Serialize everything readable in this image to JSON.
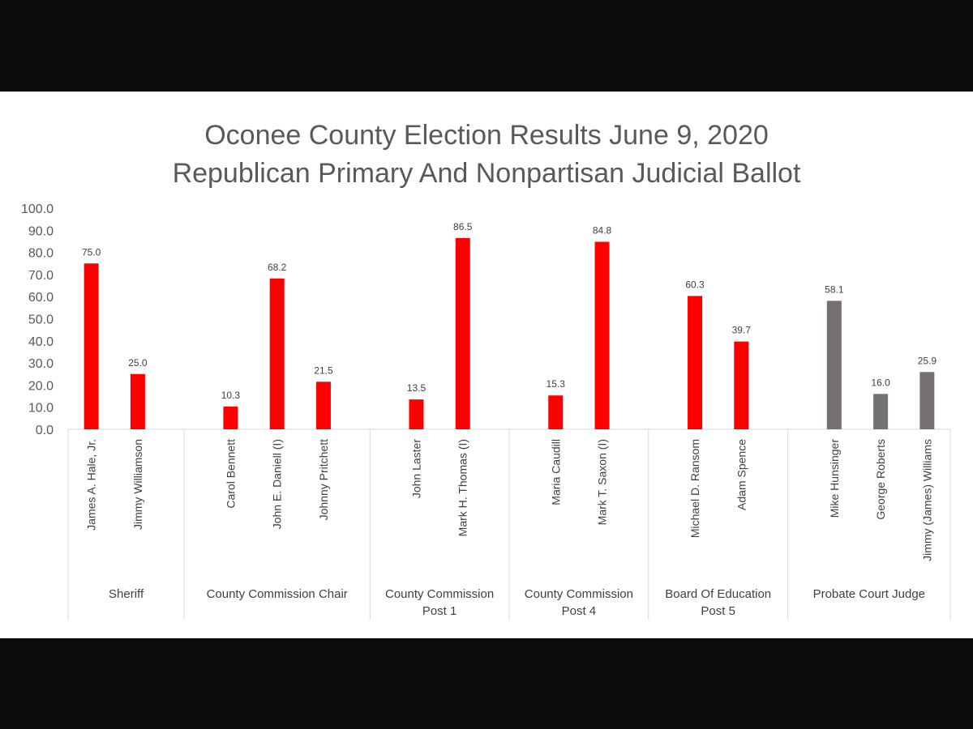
{
  "chart_data": {
    "type": "bar",
    "title": [
      "Oconee County Election Results June 9, 2020",
      "Republican Primary And Nonpartisan Judicial Ballot"
    ],
    "ylim": [
      0,
      100
    ],
    "yticks": [
      "100.0",
      "90.0",
      "80.0",
      "70.0",
      "60.0",
      "50.0",
      "40.0",
      "30.0",
      "20.0",
      "10.0",
      "0.0"
    ],
    "grid": false,
    "legend": "none",
    "colors": {
      "republican": "#ff0000",
      "nonpartisan": "#767171"
    },
    "groups": [
      {
        "name": [
          "Sheriff"
        ],
        "candidates": [
          {
            "name": "James A. Hale, Jr.",
            "value": 75.0,
            "label": "75.0",
            "ballot": "republican"
          },
          {
            "name": "Jimmy Williamson",
            "value": 25.0,
            "label": "25.0",
            "ballot": "republican"
          }
        ]
      },
      {
        "name": [
          "County Commission Chair"
        ],
        "candidates": [
          {
            "name": "Carol Bennett",
            "value": 10.3,
            "label": "10.3",
            "ballot": "republican"
          },
          {
            "name": "John E. Daniell (I)",
            "value": 68.2,
            "label": "68.2",
            "ballot": "republican"
          },
          {
            "name": "Johnny Pritchett",
            "value": 21.5,
            "label": "21.5",
            "ballot": "republican"
          }
        ]
      },
      {
        "name": [
          "County Commission",
          "Post 1"
        ],
        "candidates": [
          {
            "name": "John Laster",
            "value": 13.5,
            "label": "13.5",
            "ballot": "republican"
          },
          {
            "name": "Mark H. Thomas (I)",
            "value": 86.5,
            "label": "86.5",
            "ballot": "republican"
          }
        ]
      },
      {
        "name": [
          "County Commission",
          "Post 4"
        ],
        "candidates": [
          {
            "name": "Maria Caudill",
            "value": 15.3,
            "label": "15.3",
            "ballot": "republican"
          },
          {
            "name": "Mark T. Saxon (I)",
            "value": 84.8,
            "label": "84.8",
            "ballot": "republican"
          }
        ]
      },
      {
        "name": [
          "Board Of Education",
          "Post 5"
        ],
        "candidates": [
          {
            "name": "Michael D. Ransom",
            "value": 60.3,
            "label": "60.3",
            "ballot": "republican"
          },
          {
            "name": "Adam Spence",
            "value": 39.7,
            "label": "39.7",
            "ballot": "republican"
          }
        ]
      },
      {
        "name": [
          "Probate Court Judge"
        ],
        "candidates": [
          {
            "name": "Mike Hunsinger",
            "value": 58.1,
            "label": "58.1",
            "ballot": "nonpartisan"
          },
          {
            "name": "George Roberts",
            "value": 16.0,
            "label": "16.0",
            "ballot": "nonpartisan"
          },
          {
            "name": "Jimmy (James) Williams",
            "value": 25.9,
            "label": "25.9",
            "ballot": "nonpartisan"
          }
        ]
      }
    ]
  }
}
